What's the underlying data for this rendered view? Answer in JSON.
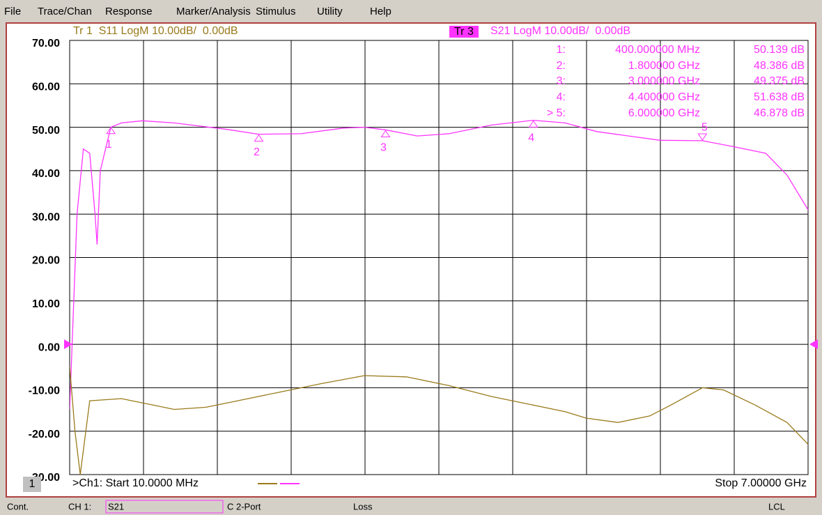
{
  "menu": [
    "File",
    "Trace/Chan",
    "Response",
    "Marker/Analysis",
    "Stimulus",
    "Utility",
    "Help"
  ],
  "trace_headers": {
    "tr1": "Tr 1  S11 LogM 10.00dB/  0.00dB",
    "tr3_tag": "Tr 3",
    "tr3": "S21 LogM 10.00dB/  0.00dB"
  },
  "chart_data": {
    "type": "line",
    "xlim": [
      10,
      7000
    ],
    "ylim": [
      -30,
      70
    ],
    "yticks": [
      {
        "value": 70,
        "label": "70.00"
      },
      {
        "value": 60,
        "label": "60.00"
      },
      {
        "value": 50,
        "label": "50.00"
      },
      {
        "value": 40,
        "label": "40.00"
      },
      {
        "value": 30,
        "label": "30.00"
      },
      {
        "value": 20,
        "label": "20.00"
      },
      {
        "value": 10,
        "label": "10.00"
      },
      {
        "value": 0,
        "label": "0.00"
      },
      {
        "value": -10,
        "label": "-10.00"
      },
      {
        "value": -20,
        "label": "-20.00"
      },
      {
        "value": -30,
        "label": "-30.00"
      }
    ],
    "grid": true,
    "series": [
      {
        "name": "S21",
        "color": "#ff33ff",
        "x": [
          10,
          80,
          140,
          200,
          250,
          270,
          300,
          400,
          500,
          700,
          1000,
          1500,
          1800,
          2200,
          2600,
          2800,
          3000,
          3300,
          3600,
          4000,
          4400,
          4700,
          5000,
          5300,
          5600,
          6000,
          6300,
          6600,
          6800,
          7000
        ],
        "values": [
          -15,
          30,
          45,
          44,
          30,
          23,
          40,
          50,
          51,
          51.5,
          51,
          49.5,
          48.4,
          48.5,
          49.8,
          50,
          49.4,
          48,
          48.5,
          50.5,
          51.6,
          51,
          49,
          48,
          47,
          46.9,
          45.5,
          44,
          39,
          31
        ]
      },
      {
        "name": "S11",
        "color": "#9a7a1a",
        "x": [
          10,
          60,
          110,
          200,
          500,
          800,
          1000,
          1300,
          1600,
          2000,
          2400,
          2800,
          3200,
          3600,
          4000,
          4300,
          4700,
          4900,
          5200,
          5500,
          5700,
          6000,
          6200,
          6500,
          6800,
          7000
        ],
        "values": [
          -5,
          -20,
          -30,
          -13,
          -12.5,
          -14,
          -15,
          -14.5,
          -13,
          -11,
          -9,
          -7.2,
          -7.5,
          -9.5,
          -12,
          -13.5,
          -15.5,
          -17,
          -18,
          -16.5,
          -14,
          -10,
          -10.5,
          -14,
          -18,
          -23
        ]
      }
    ],
    "markers": [
      {
        "label": "1",
        "id": "1:",
        "x": 400,
        "y": 50.139,
        "freq": "400.000000 MHz",
        "reading": "50.139 dB"
      },
      {
        "label": "2",
        "id": "2:",
        "x": 1800,
        "y": 48.386,
        "freq": "1.800000 GHz",
        "reading": "48.386 dB"
      },
      {
        "label": "3",
        "id": "3:",
        "x": 3000,
        "y": 49.375,
        "freq": "3.000000 GHz",
        "reading": "49.375 dB"
      },
      {
        "label": "4",
        "id": "4:",
        "x": 4400,
        "y": 51.638,
        "freq": "4.400000 GHz",
        "reading": "51.638 dB"
      },
      {
        "label": "5",
        "id": "> 5:",
        "x": 6000,
        "y": 46.878,
        "freq": "6.000000 GHz",
        "reading": "46.878 dB"
      }
    ]
  },
  "footer": {
    "channel": "1",
    "start": ">Ch1: Start 10.0000 MHz",
    "stop": "Stop 7.00000 GHz"
  },
  "status": {
    "mode": "Cont.",
    "ch": "CH 1:",
    "param": "S21",
    "cal": "C 2-Port",
    "loss": "Loss",
    "lcl": "LCL"
  }
}
